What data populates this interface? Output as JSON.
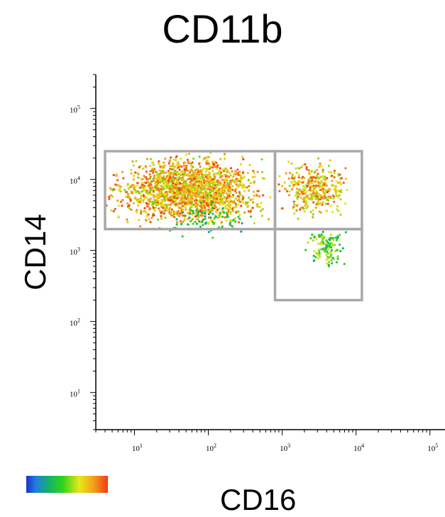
{
  "chart_data": {
    "type": "scatter",
    "title": "CD11b",
    "xlabel": "CD16",
    "ylabel": "CD14",
    "x_scale": "log",
    "y_scale": "log",
    "xlim": [
      3,
      160000
    ],
    "ylim": [
      3,
      300000
    ],
    "x_ticks": [
      {
        "base": "10",
        "exp": "1",
        "value": 10
      },
      {
        "base": "10",
        "exp": "2",
        "value": 100
      },
      {
        "base": "10",
        "exp": "3",
        "value": 1000
      },
      {
        "base": "10",
        "exp": "4",
        "value": 10000
      },
      {
        "base": "10",
        "exp": "5",
        "value": 100000
      }
    ],
    "y_ticks": [
      {
        "base": "10",
        "exp": "1",
        "value": 10
      },
      {
        "base": "10",
        "exp": "2",
        "value": 100
      },
      {
        "base": "10",
        "exp": "3",
        "value": 1000
      },
      {
        "base": "10",
        "exp": "4",
        "value": 10000
      },
      {
        "base": "10",
        "exp": "5",
        "value": 100000
      }
    ],
    "gates": [
      {
        "x": [
          4,
          800
        ],
        "y": [
          2000,
          25000
        ]
      },
      {
        "x": [
          800,
          12000
        ],
        "y": [
          2000,
          25000
        ]
      },
      {
        "x": [
          800,
          12000
        ],
        "y": [
          200,
          2000
        ]
      }
    ],
    "populations": [
      {
        "x_range": [
          4,
          800
        ],
        "y_range": [
          2000,
          25000
        ],
        "count": 1800,
        "color_range": [
          0.55,
          1.0
        ]
      },
      {
        "x_range": [
          800,
          10000
        ],
        "y_range": [
          2500,
          20000
        ],
        "count": 350,
        "color_range": [
          0.55,
          1.0
        ]
      },
      {
        "x_range": [
          2000,
          8000
        ],
        "y_range": [
          500,
          2500
        ],
        "count": 120,
        "color_range": [
          0.3,
          0.7
        ]
      },
      {
        "x_range": [
          20,
          500
        ],
        "y_range": [
          1500,
          5000
        ],
        "count": 80,
        "color_range": [
          0.25,
          0.55
        ]
      }
    ],
    "colorscale": [
      "#1f33c9",
      "#1e7ee0",
      "#16b85a",
      "#34d21a",
      "#e8e81a",
      "#f2a21a",
      "#f03a1a"
    ],
    "gate_color": "#a8a8a8",
    "grid": false
  }
}
